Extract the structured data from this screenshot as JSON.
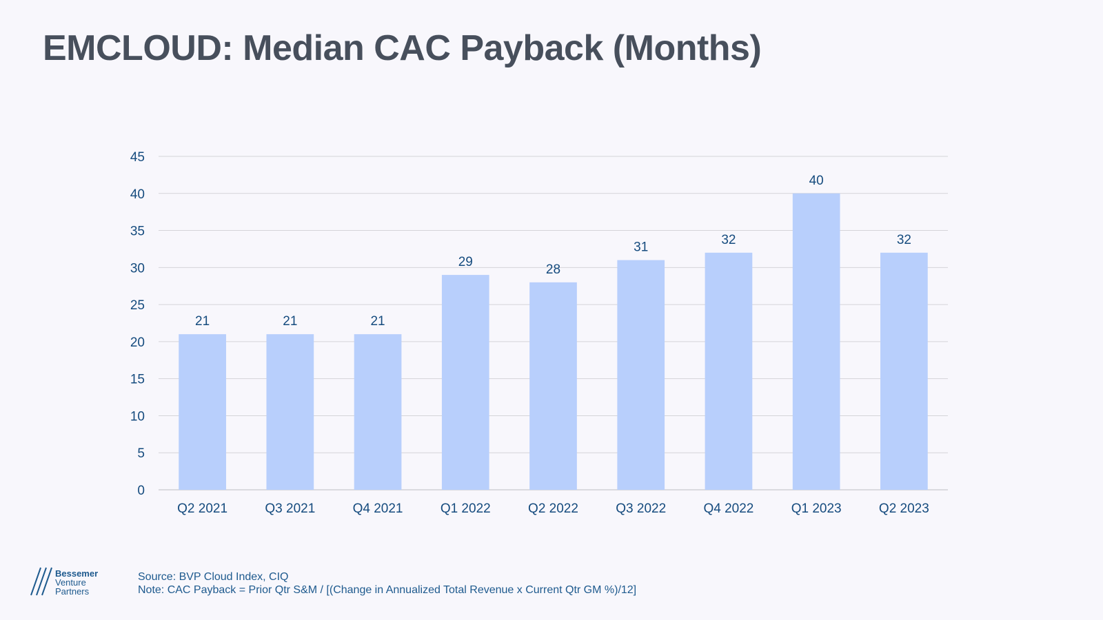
{
  "title": "EMCLOUD: Median CAC Payback (Months)",
  "chart_data": {
    "type": "bar",
    "title": "EMCLOUD: Median CAC Payback (Months)",
    "xlabel": "",
    "ylabel": "",
    "categories": [
      "Q2 2021",
      "Q3 2021",
      "Q4 2021",
      "Q1 2022",
      "Q2 2022",
      "Q3 2022",
      "Q4 2022",
      "Q1 2023",
      "Q2 2023"
    ],
    "values": [
      21,
      21,
      21,
      29,
      28,
      31,
      32,
      40,
      32
    ],
    "data_labels": [
      "21",
      "21",
      "21",
      "29",
      "28",
      "31",
      "32",
      "40",
      "32"
    ],
    "ylim": [
      0,
      45
    ],
    "yticks": [
      0,
      5,
      10,
      15,
      20,
      25,
      30,
      35,
      40,
      45
    ],
    "grid": true,
    "legend": "none",
    "bar_color": "#b8cffc",
    "label_color": "#154b7e",
    "grid_color": "#d4d4d8"
  },
  "footer": {
    "logo_line1": "Bessemer",
    "logo_line2": "Venture",
    "logo_line3": "Partners",
    "source": "Source: BVP Cloud Index, CIQ",
    "note": "Note: CAC Payback = Prior Qtr S&M / [(Change in Annualized Total Revenue x Current Qtr GM %)/12]"
  }
}
